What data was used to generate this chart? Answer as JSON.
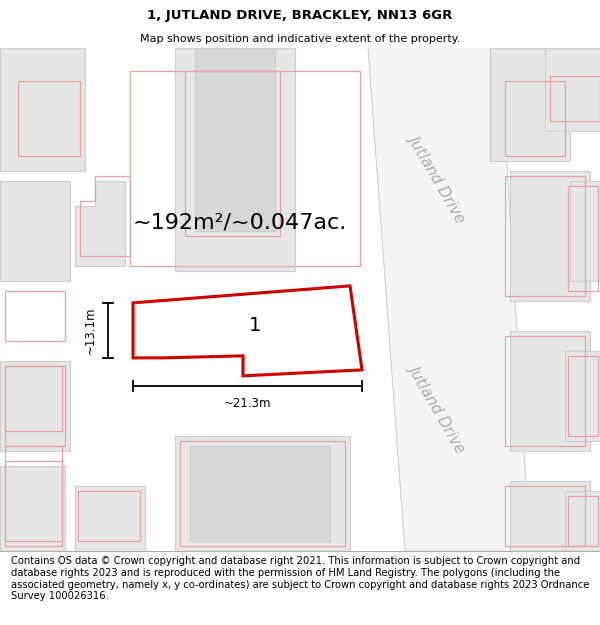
{
  "title_line1": "1, JUTLAND DRIVE, BRACKLEY, NN13 6GR",
  "title_line2": "Map shows position and indicative extent of the property.",
  "area_text": "~192m²/~0.047ac.",
  "property_number": "1",
  "dim_vertical": "~13.1m",
  "dim_horizontal": "~21.3m",
  "road_label": "Jutland Drive",
  "copyright_text": "Contains OS data © Crown copyright and database right 2021. This information is subject to Crown copyright and database rights 2023 and is reproduced with the permission of HM Land Registry. The polygons (including the associated geometry, namely x, y co-ordinates) are subject to Crown copyright and database rights 2023 Ordnance Survey 100026316.",
  "map_bg": "#ffffff",
  "block_fill": "#e6e6e6",
  "block_edge": "#cccccc",
  "neighbor_color": "#e8a0a0",
  "road_fill": "#f8f8f8",
  "plot_color": "#cc0000",
  "title_fontsize": 9.5,
  "subtitle_fontsize": 8,
  "area_fontsize": 16,
  "number_fontsize": 14,
  "dim_fontsize": 8.5,
  "road_fontsize": 11,
  "copyright_fontsize": 7.2,
  "title_bold": true
}
